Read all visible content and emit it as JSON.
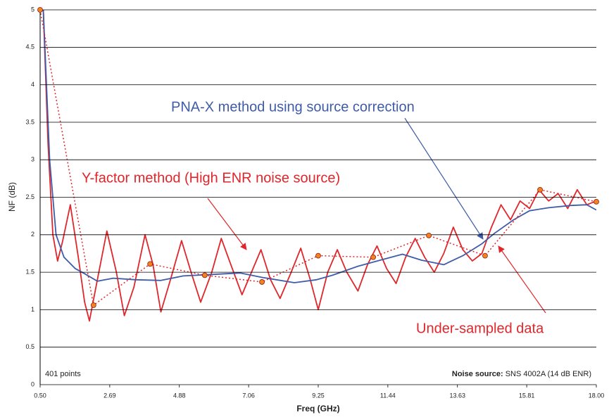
{
  "chart_data": {
    "type": "line",
    "xlabel": "Freq (GHz)",
    "ylabel": "NF (dB)",
    "xlim": [
      0.5,
      18.0
    ],
    "ylim": [
      0,
      5
    ],
    "xticks": [
      {
        "value": 0.5,
        "label": "0.50"
      },
      2.69,
      4.88,
      7.06,
      9.25,
      11.44,
      13.63,
      15.81,
      {
        "value": 18.0,
        "label": "18.00"
      }
    ],
    "yticks": [
      0,
      0.5,
      1,
      1.5,
      2,
      2.5,
      3,
      3.5,
      4,
      4.5,
      5
    ],
    "grid": true,
    "annotations": {
      "pna": "PNA-X method using source correction",
      "yfactor": "Y-factor method (High ENR noise source)",
      "undersampled": "Under-sampled data",
      "points": "401 points",
      "source_label": "Noise source:",
      "source_value": "SNS 4002A (14 dB ENR)"
    },
    "series": [
      {
        "color": "#e0262b",
        "style": "solid",
        "x": [
          0.6,
          0.75,
          0.9,
          1.05,
          1.2,
          1.45,
          1.7,
          1.9,
          2.05,
          2.3,
          2.6,
          2.9,
          3.15,
          3.45,
          3.8,
          4.05,
          4.3,
          4.6,
          4.95,
          5.25,
          5.55,
          5.9,
          6.2,
          6.5,
          6.85,
          7.15,
          7.45,
          7.75,
          8.05,
          8.4,
          8.7,
          9.0,
          9.25,
          9.55,
          9.85,
          10.15,
          10.5,
          10.8,
          11.1,
          11.4,
          11.7,
          12.0,
          12.3,
          12.6,
          12.9,
          13.2,
          13.5,
          13.8,
          14.1,
          14.4,
          14.7,
          15.0,
          15.3,
          15.6,
          15.9,
          16.2,
          16.5,
          16.8,
          17.1,
          17.4,
          17.7,
          18.0
        ],
        "values": [
          5.0,
          3.2,
          2.0,
          1.65,
          1.9,
          2.4,
          1.7,
          1.1,
          0.85,
          1.4,
          2.05,
          1.5,
          0.92,
          1.3,
          2.0,
          1.6,
          0.97,
          1.4,
          1.92,
          1.5,
          1.1,
          1.5,
          1.95,
          1.6,
          1.2,
          1.5,
          1.8,
          1.4,
          1.15,
          1.5,
          1.82,
          1.4,
          1.0,
          1.5,
          1.8,
          1.5,
          1.25,
          1.6,
          1.85,
          1.55,
          1.35,
          1.7,
          1.95,
          1.7,
          1.5,
          1.75,
          2.1,
          1.8,
          1.65,
          1.75,
          2.1,
          2.4,
          2.2,
          2.45,
          2.35,
          2.6,
          2.45,
          2.55,
          2.35,
          2.6,
          2.4,
          2.45
        ]
      },
      {
        "color": "#3f5ca8",
        "style": "solid",
        "x": [
          0.6,
          0.8,
          1.0,
          1.25,
          1.6,
          1.9,
          2.3,
          2.8,
          3.5,
          4.3,
          5.0,
          5.9,
          6.8,
          7.5,
          8.5,
          9.2,
          9.7,
          10.5,
          11.2,
          11.9,
          12.5,
          13.2,
          13.8,
          14.4,
          14.8,
          15.4,
          15.9,
          16.5,
          17.2,
          17.7,
          18.0
        ],
        "values": [
          5.0,
          3.0,
          2.0,
          1.7,
          1.55,
          1.48,
          1.38,
          1.42,
          1.4,
          1.39,
          1.45,
          1.47,
          1.49,
          1.43,
          1.36,
          1.4,
          1.46,
          1.58,
          1.66,
          1.74,
          1.66,
          1.6,
          1.72,
          1.88,
          2.02,
          2.2,
          2.32,
          2.36,
          2.39,
          2.4,
          2.33
        ]
      },
      {
        "color": "#e0262b",
        "style": "dotted",
        "marker_color": "#f58220",
        "x": [
          0.5,
          2.18,
          3.96,
          5.68,
          7.48,
          9.25,
          10.98,
          12.73,
          14.5,
          16.23,
          18.0
        ],
        "values": [
          5.0,
          1.06,
          1.61,
          1.46,
          1.37,
          1.72,
          1.7,
          1.99,
          1.72,
          2.6,
          2.44
        ]
      }
    ]
  }
}
